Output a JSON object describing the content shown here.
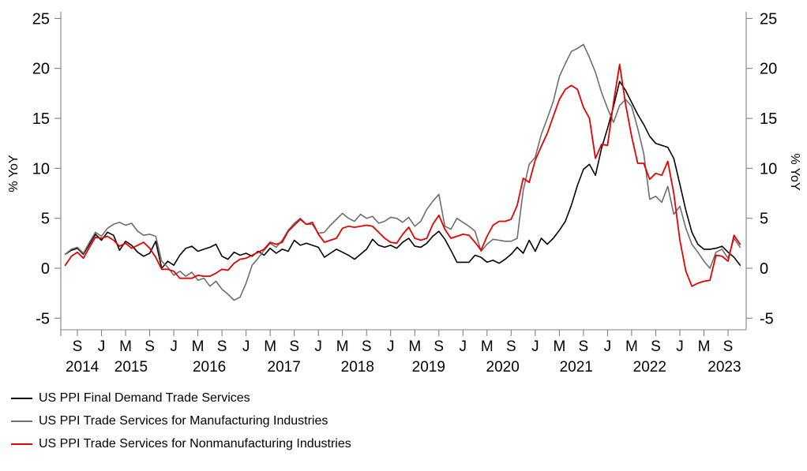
{
  "chart_data": {
    "type": "line",
    "title": "",
    "ylabel_left": "% YoY",
    "ylabel_right": "% YoY",
    "ylim": [
      -6.3,
      25.8
    ],
    "yticks": [
      25,
      20,
      15,
      10,
      5,
      0,
      -5
    ],
    "grid": false,
    "legend_position": "below-left",
    "axis_color": "#808080",
    "x_months": [
      "2014-07",
      "2014-08",
      "2014-09",
      "2014-10",
      "2014-11",
      "2014-12",
      "2015-01",
      "2015-02",
      "2015-03",
      "2015-04",
      "2015-05",
      "2015-06",
      "2015-07",
      "2015-08",
      "2015-09",
      "2015-10",
      "2015-11",
      "2015-12",
      "2016-01",
      "2016-02",
      "2016-03",
      "2016-04",
      "2016-05",
      "2016-06",
      "2016-07",
      "2016-08",
      "2016-09",
      "2016-10",
      "2016-11",
      "2016-12",
      "2017-01",
      "2017-02",
      "2017-03",
      "2017-04",
      "2017-05",
      "2017-06",
      "2017-07",
      "2017-08",
      "2017-09",
      "2017-10",
      "2017-11",
      "2017-12",
      "2018-01",
      "2018-02",
      "2018-03",
      "2018-04",
      "2018-05",
      "2018-06",
      "2018-07",
      "2018-08",
      "2018-09",
      "2018-10",
      "2018-11",
      "2018-12",
      "2019-01",
      "2019-02",
      "2019-03",
      "2019-04",
      "2019-05",
      "2019-06",
      "2019-07",
      "2019-08",
      "2019-09",
      "2019-10",
      "2019-11",
      "2019-12",
      "2020-01",
      "2020-02",
      "2020-03",
      "2020-04",
      "2020-05",
      "2020-06",
      "2020-07",
      "2020-08",
      "2020-09",
      "2020-10",
      "2020-11",
      "2020-12",
      "2021-01",
      "2021-02",
      "2021-03",
      "2021-04",
      "2021-05",
      "2021-06",
      "2021-07",
      "2021-08",
      "2021-09",
      "2021-10",
      "2021-11",
      "2021-12",
      "2022-01",
      "2022-02",
      "2022-03",
      "2022-04",
      "2022-05",
      "2022-06",
      "2022-07",
      "2022-08",
      "2022-09",
      "2022-10",
      "2022-11",
      "2022-12",
      "2023-01",
      "2023-02",
      "2023-03",
      "2023-04",
      "2023-05",
      "2023-06",
      "2023-07",
      "2023-08",
      "2023-09",
      "2023-10",
      "2023-11"
    ],
    "month_ticks": [
      {
        "i": 2,
        "l": "S"
      },
      {
        "i": 6,
        "l": "J"
      },
      {
        "i": 10,
        "l": "M"
      },
      {
        "i": 14,
        "l": "S"
      },
      {
        "i": 18,
        "l": "J"
      },
      {
        "i": 22,
        "l": "M"
      },
      {
        "i": 26,
        "l": "S"
      },
      {
        "i": 30,
        "l": "J"
      },
      {
        "i": 34,
        "l": "M"
      },
      {
        "i": 38,
        "l": "S"
      },
      {
        "i": 42,
        "l": "J"
      },
      {
        "i": 46,
        "l": "M"
      },
      {
        "i": 50,
        "l": "S"
      },
      {
        "i": 54,
        "l": "J"
      },
      {
        "i": 58,
        "l": "M"
      },
      {
        "i": 62,
        "l": "S"
      },
      {
        "i": 66,
        "l": "J"
      },
      {
        "i": 70,
        "l": "M"
      },
      {
        "i": 74,
        "l": "S"
      },
      {
        "i": 78,
        "l": "J"
      },
      {
        "i": 82,
        "l": "M"
      },
      {
        "i": 86,
        "l": "S"
      },
      {
        "i": 90,
        "l": "J"
      },
      {
        "i": 94,
        "l": "M"
      },
      {
        "i": 98,
        "l": "S"
      },
      {
        "i": 102,
        "l": "J"
      },
      {
        "i": 106,
        "l": "M"
      },
      {
        "i": 110,
        "l": "S"
      }
    ],
    "year_labels": [
      {
        "i": 2.8,
        "l": "2014"
      },
      {
        "i": 10.9,
        "l": "2015"
      },
      {
        "i": 23.9,
        "l": "2016"
      },
      {
        "i": 36.3,
        "l": "2017"
      },
      {
        "i": 48.5,
        "l": "2018"
      },
      {
        "i": 60.3,
        "l": "2019"
      },
      {
        "i": 72.6,
        "l": "2020"
      },
      {
        "i": 84.8,
        "l": "2021"
      },
      {
        "i": 97.0,
        "l": "2022"
      },
      {
        "i": 109.4,
        "l": "2023"
      }
    ],
    "series": [
      {
        "name": "US PPI Final Demand Trade Services",
        "color": "#000000",
        "values": [
          1.4,
          1.8,
          2.0,
          1.4,
          2.4,
          3.4,
          2.8,
          3.6,
          3.3,
          1.8,
          2.7,
          2.3,
          1.6,
          1.2,
          1.5,
          2.7,
          0.0,
          0.7,
          0.3,
          1.3,
          2.0,
          2.2,
          1.7,
          1.9,
          2.1,
          2.4,
          1.2,
          0.9,
          1.6,
          1.3,
          1.5,
          1.2,
          1.7,
          1.3,
          2.0,
          1.5,
          1.9,
          1.7,
          2.8,
          2.3,
          2.5,
          2.3,
          2.1,
          1.1,
          1.5,
          1.9,
          1.6,
          1.3,
          0.9,
          1.4,
          1.9,
          2.9,
          2.3,
          2.1,
          2.3,
          2.0,
          2.6,
          3.0,
          2.2,
          2.1,
          2.5,
          3.2,
          3.7,
          2.9,
          1.8,
          0.6,
          0.6,
          0.6,
          1.3,
          1.1,
          0.6,
          0.8,
          0.5,
          0.9,
          1.4,
          2.1,
          1.5,
          2.8,
          1.7,
          3.0,
          2.4,
          3.0,
          3.8,
          4.7,
          6.3,
          8.3,
          9.9,
          10.4,
          9.3,
          12.0,
          14.0,
          16.2,
          18.7,
          17.8,
          16.6,
          15.4,
          14.4,
          13.2,
          12.5,
          12.3,
          12.1,
          11.0,
          8.4,
          5.8,
          3.6,
          2.4,
          1.9,
          1.9,
          2.0,
          2.2,
          1.6,
          1.1,
          0.3
        ]
      },
      {
        "name": "US PPI Trade Services for Manufacturing Industries",
        "color": "#6e6e6e",
        "values": [
          1.4,
          1.9,
          2.1,
          1.5,
          2.6,
          3.6,
          3.2,
          4.0,
          4.4,
          4.6,
          4.3,
          4.5,
          3.7,
          3.3,
          3.4,
          3.2,
          0.7,
          0.1,
          -0.7,
          -0.3,
          -0.8,
          -0.4,
          -1.2,
          -1.0,
          -1.8,
          -1.3,
          -2.1,
          -2.6,
          -3.2,
          -2.9,
          -1.5,
          0.3,
          1.0,
          1.8,
          2.5,
          2.1,
          2.8,
          3.8,
          4.5,
          5.0,
          4.4,
          4.4,
          3.5,
          3.6,
          4.3,
          4.9,
          5.5,
          5.0,
          4.7,
          5.4,
          5.0,
          5.2,
          4.5,
          4.7,
          5.1,
          5.0,
          4.6,
          5.1,
          4.2,
          4.7,
          5.9,
          6.7,
          7.4,
          4.2,
          3.9,
          5.0,
          4.6,
          4.2,
          3.7,
          1.7,
          2.4,
          2.9,
          2.8,
          2.7,
          2.7,
          3.0,
          7.8,
          10.4,
          11.1,
          13.4,
          15.0,
          16.7,
          19.2,
          20.5,
          21.7,
          22.0,
          22.4,
          21.1,
          19.6,
          17.6,
          16.0,
          14.6,
          16.3,
          16.9,
          16.2,
          14.0,
          11.5,
          6.9,
          7.2,
          6.6,
          8.2,
          5.4,
          6.2,
          4.0,
          2.4,
          1.6,
          0.7,
          0.0,
          1.6,
          1.9,
          1.0,
          3.0,
          2.1
        ]
      },
      {
        "name": "US PPI Trade Services for Nonmanufacturing Industries",
        "color": "#e60000",
        "values": [
          0.3,
          1.2,
          1.6,
          1.0,
          2.1,
          3.1,
          3.0,
          3.2,
          2.8,
          2.2,
          2.5,
          2.0,
          2.3,
          2.6,
          2.0,
          1.1,
          -0.1,
          -0.1,
          -0.3,
          -1.0,
          -1.0,
          -1.0,
          -0.7,
          -0.8,
          -0.8,
          -0.5,
          -0.1,
          -0.2,
          0.5,
          0.9,
          1.0,
          1.3,
          1.6,
          1.9,
          2.6,
          2.4,
          2.6,
          3.7,
          4.3,
          4.9,
          4.4,
          4.6,
          3.4,
          2.6,
          2.8,
          3.0,
          4.0,
          4.2,
          4.1,
          4.2,
          4.3,
          4.2,
          3.6,
          3.0,
          2.6,
          2.5,
          3.4,
          4.1,
          3.0,
          2.8,
          3.0,
          4.4,
          5.3,
          3.9,
          3.0,
          3.2,
          3.4,
          3.3,
          2.6,
          1.8,
          3.2,
          4.3,
          4.7,
          4.7,
          4.9,
          6.3,
          9.0,
          8.6,
          10.8,
          12.2,
          13.5,
          15.2,
          16.9,
          17.9,
          18.3,
          17.9,
          16.1,
          15.0,
          11.0,
          12.4,
          12.3,
          16.6,
          20.4,
          16.4,
          13.2,
          10.5,
          10.5,
          8.9,
          9.5,
          9.3,
          10.7,
          7.5,
          2.8,
          -0.3,
          -1.8,
          -1.5,
          -1.3,
          -1.2,
          1.3,
          1.2,
          0.7,
          3.3,
          2.4
        ]
      }
    ]
  },
  "legend": {
    "items": [
      {
        "label": "US PPI Final Demand Trade Services"
      },
      {
        "label": "US PPI Trade Services for Manufacturing Industries"
      },
      {
        "label": "US PPI Trade Services for Nonmanufacturing Industries"
      }
    ]
  }
}
